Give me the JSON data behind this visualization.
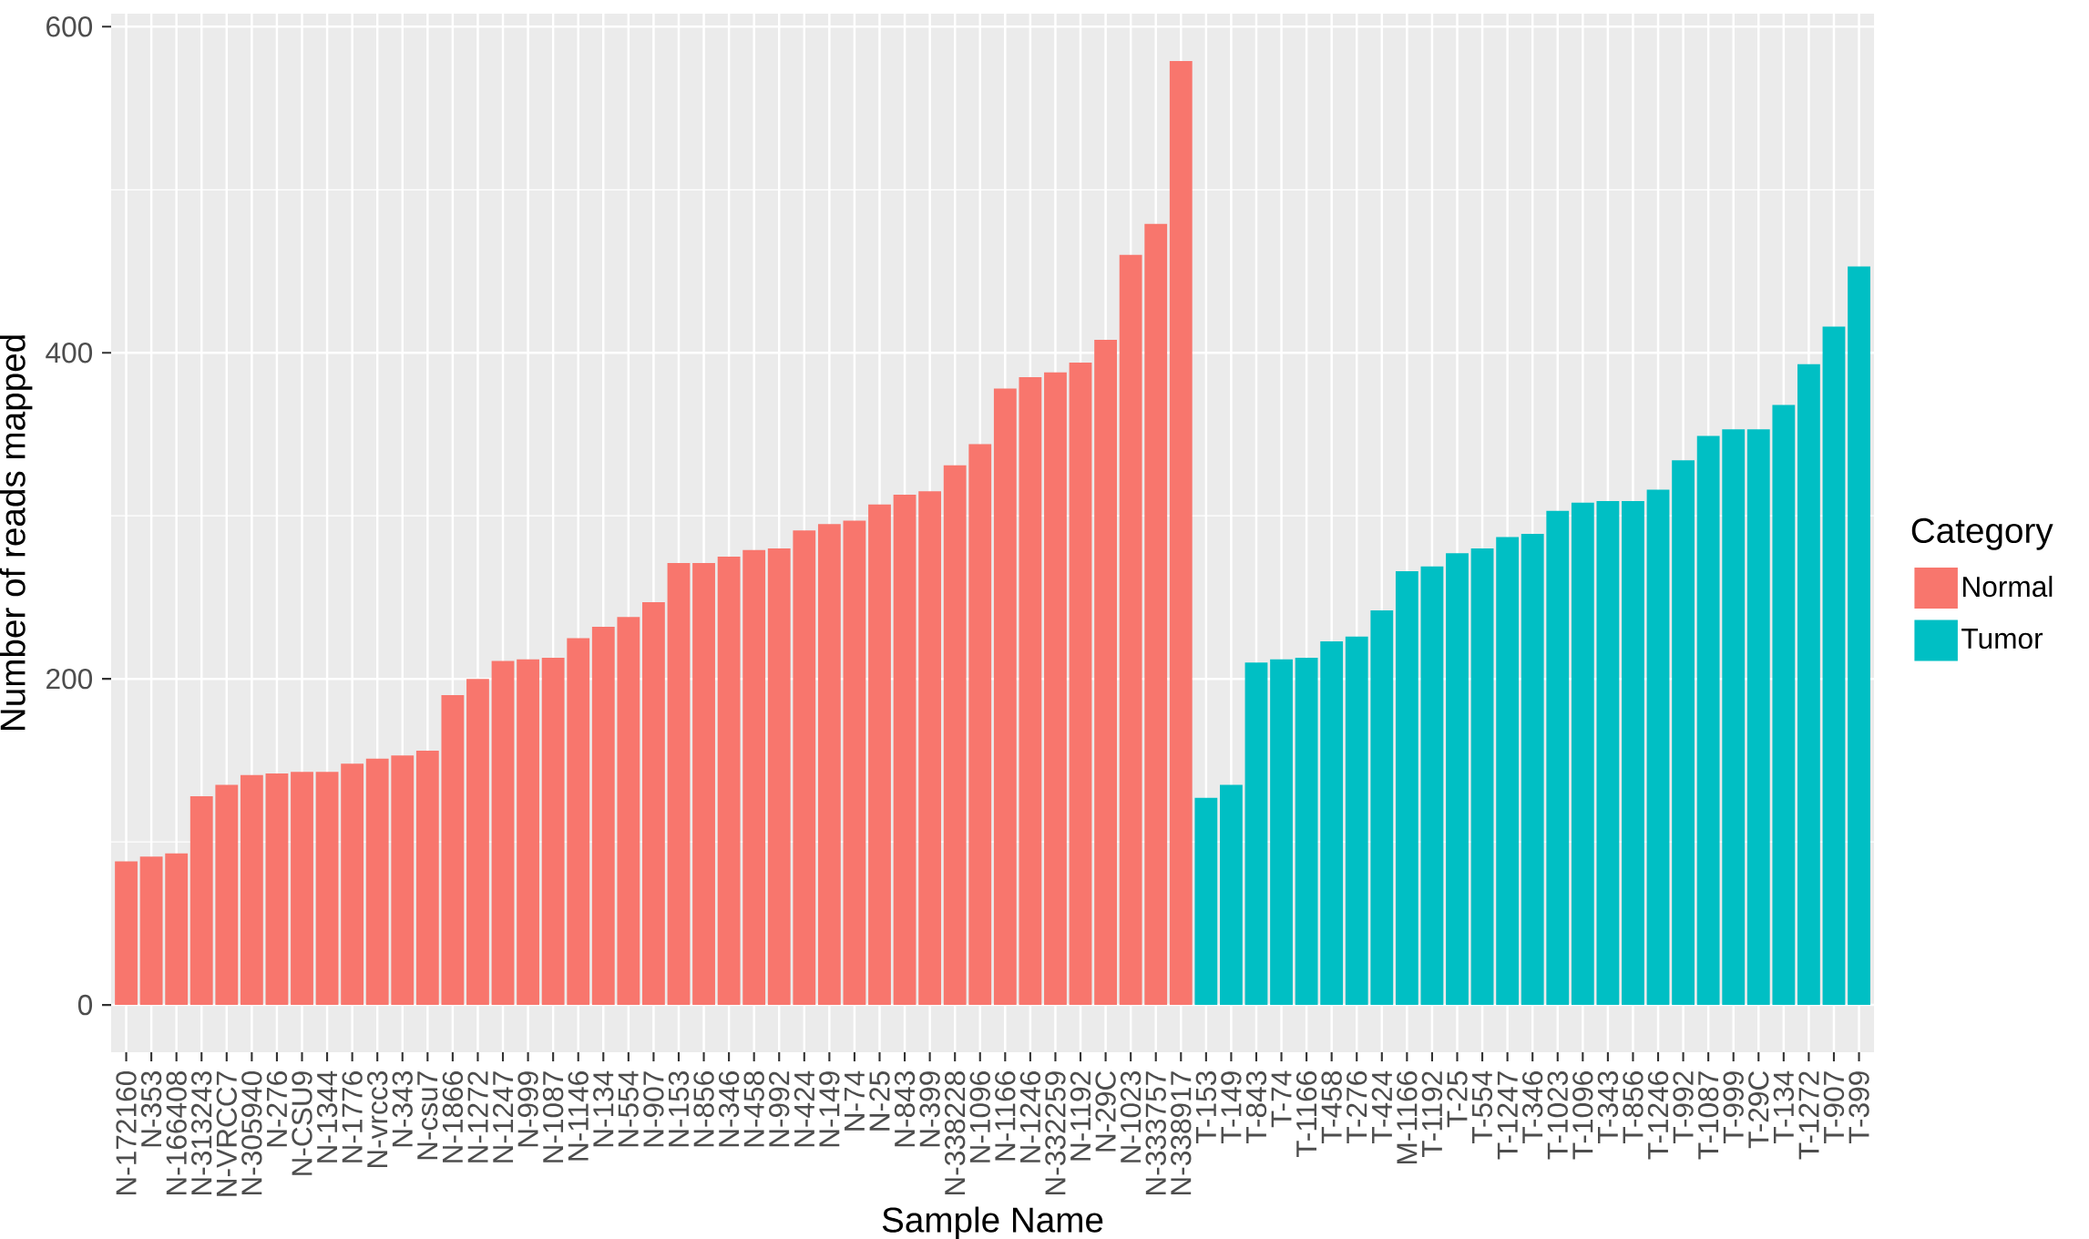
{
  "chart_data": {
    "type": "bar",
    "xlabel": "Sample Name",
    "ylabel": "Number of reads mapped",
    "legend_title": "Category",
    "categories": [
      "N-172160",
      "N-353",
      "N-166408",
      "N-313243",
      "N-VRCC7",
      "N-305940",
      "N-276",
      "N-CSU9",
      "N-1344",
      "N-1776",
      "N-vrcc3",
      "N-343",
      "N-csu7",
      "N-1866",
      "N-1272",
      "N-1247",
      "N-999",
      "N-1087",
      "N-1146",
      "N-134",
      "N-554",
      "N-907",
      "N-153",
      "N-856",
      "N-346",
      "N-458",
      "N-992",
      "N-424",
      "N-149",
      "N-74",
      "N-25",
      "N-843",
      "N-399",
      "N-338228",
      "N-1096",
      "N-1166",
      "N-1246",
      "N-332259",
      "N-1192",
      "N-29C",
      "N-1023",
      "N-333757",
      "N-338917",
      "T-153",
      "T-149",
      "T-843",
      "T-74",
      "T-1166",
      "T-458",
      "T-276",
      "T-424",
      "M-1166",
      "T-1192",
      "T-25",
      "T-554",
      "T-1247",
      "T-346",
      "T-1023",
      "T-1096",
      "T-343",
      "T-856",
      "T-1246",
      "T-992",
      "T-1087",
      "T-999",
      "T-29C",
      "T-134",
      "T-1272",
      "T-907",
      "T-399"
    ],
    "series": [
      {
        "name": "Normal",
        "color": "#f8766d",
        "values": [
          88,
          91,
          93,
          128,
          135,
          141,
          142,
          143,
          143,
          148,
          151,
          153,
          156,
          190,
          200,
          211,
          212,
          213,
          225,
          232,
          238,
          247,
          271,
          271,
          275,
          279,
          280,
          291,
          295,
          297,
          307,
          313,
          315,
          331,
          344,
          378,
          385,
          388,
          394,
          408,
          460,
          479,
          579,
          null,
          null,
          null,
          null,
          null,
          null,
          null,
          null,
          null,
          null,
          null,
          null,
          null,
          null,
          null,
          null,
          null,
          null,
          null,
          null,
          null,
          null,
          null,
          null,
          null,
          null,
          null
        ]
      },
      {
        "name": "Tumor",
        "color": "#00bfc4",
        "values": [
          null,
          null,
          null,
          null,
          null,
          null,
          null,
          null,
          null,
          null,
          null,
          null,
          null,
          null,
          null,
          null,
          null,
          null,
          null,
          null,
          null,
          null,
          null,
          null,
          null,
          null,
          null,
          null,
          null,
          null,
          null,
          null,
          null,
          null,
          null,
          null,
          null,
          null,
          null,
          null,
          null,
          null,
          null,
          127,
          135,
          210,
          212,
          213,
          223,
          226,
          242,
          266,
          269,
          277,
          280,
          287,
          289,
          303,
          308,
          309,
          309,
          316,
          334,
          349,
          353,
          353,
          368,
          393,
          416,
          453
        ]
      }
    ],
    "ylim": [
      -29,
      608
    ],
    "yticks": [
      0,
      200,
      400,
      600
    ],
    "grid": true,
    "legend": "right"
  }
}
